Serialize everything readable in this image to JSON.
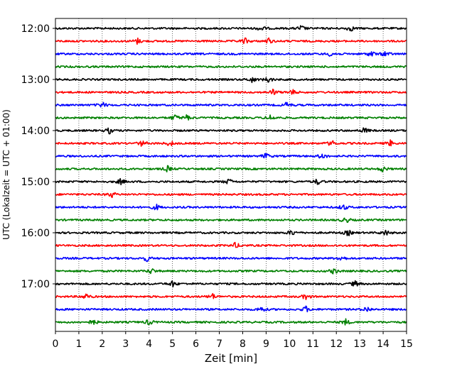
{
  "chart_data": {
    "type": "helicorder",
    "title": "",
    "xlabel": "Zeit  [min]",
    "ylabel": "UTC (Lokalzeit = UTC + 01:00)",
    "xlim": [
      0,
      15
    ],
    "x_ticks": [
      "0",
      "1",
      "2",
      "3",
      "4",
      "5",
      "6",
      "7",
      "8",
      "9",
      "10",
      "11",
      "12",
      "13",
      "14",
      "15"
    ],
    "grid": "vertical dotted lines at each minute",
    "trace_interval_minutes": 15,
    "color_cycle": [
      "#000000",
      "#ff0000",
      "#0000ff",
      "#008000"
    ],
    "hour_labels": [
      {
        "label": "12:00",
        "trace_index": 0
      },
      {
        "label": "13:00",
        "trace_index": 4
      },
      {
        "label": "14:00",
        "trace_index": 8
      },
      {
        "label": "15:00",
        "trace_index": 12
      },
      {
        "label": "16:00",
        "trace_index": 16
      },
      {
        "label": "17:00",
        "trace_index": 20
      }
    ],
    "traces": [
      {
        "start": "12:00",
        "color": "#000000",
        "events_min": [
          8.8,
          10.5,
          12.6
        ]
      },
      {
        "start": "12:15",
        "color": "#ff0000",
        "events_min": [
          3.5,
          8.1,
          9.1
        ]
      },
      {
        "start": "12:30",
        "color": "#0000ff",
        "events_min": [
          11.8,
          13.5,
          14.1
        ]
      },
      {
        "start": "12:45",
        "color": "#008000",
        "events_min": []
      },
      {
        "start": "13:00",
        "color": "#000000",
        "events_min": [
          8.4,
          9.1
        ]
      },
      {
        "start": "13:15",
        "color": "#ff0000",
        "events_min": [
          9.3,
          10.1
        ]
      },
      {
        "start": "13:30",
        "color": "#0000ff",
        "events_min": [
          2.0,
          9.9
        ]
      },
      {
        "start": "13:45",
        "color": "#008000",
        "events_min": [
          5.1,
          5.6,
          9.2
        ]
      },
      {
        "start": "14:00",
        "color": "#000000",
        "events_min": [
          2.3,
          13.2
        ]
      },
      {
        "start": "14:15",
        "color": "#ff0000",
        "events_min": [
          3.7,
          4.9,
          11.8,
          14.3
        ]
      },
      {
        "start": "14:30",
        "color": "#0000ff",
        "events_min": [
          9.0,
          11.4
        ]
      },
      {
        "start": "14:45",
        "color": "#008000",
        "events_min": [
          4.8,
          14.0
        ]
      },
      {
        "start": "15:00",
        "color": "#000000",
        "events_min": [
          2.8,
          7.4,
          11.2
        ]
      },
      {
        "start": "15:15",
        "color": "#ff0000",
        "events_min": [
          2.4
        ]
      },
      {
        "start": "15:30",
        "color": "#0000ff",
        "events_min": [
          4.3,
          12.3
        ]
      },
      {
        "start": "15:45",
        "color": "#008000",
        "events_min": [
          12.4
        ]
      },
      {
        "start": "16:00",
        "color": "#000000",
        "events_min": [
          10.1,
          12.5,
          14.1
        ]
      },
      {
        "start": "16:15",
        "color": "#ff0000",
        "events_min": [
          7.7
        ]
      },
      {
        "start": "16:30",
        "color": "#0000ff",
        "events_min": [
          3.9,
          12.2
        ]
      },
      {
        "start": "16:45",
        "color": "#008000",
        "events_min": [
          4.1,
          11.9
        ]
      },
      {
        "start": "17:00",
        "color": "#000000",
        "events_min": [
          5.0,
          12.8
        ]
      },
      {
        "start": "17:15",
        "color": "#ff0000",
        "events_min": [
          1.3,
          6.7,
          10.7
        ]
      },
      {
        "start": "17:30",
        "color": "#0000ff",
        "events_min": [
          8.8,
          10.7,
          13.3
        ]
      },
      {
        "start": "17:45",
        "color": "#008000",
        "events_min": [
          1.6,
          4.0,
          12.4
        ]
      }
    ]
  }
}
